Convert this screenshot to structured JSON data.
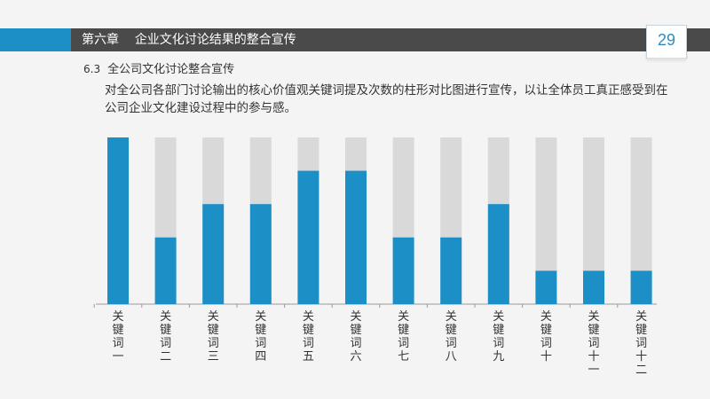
{
  "header": {
    "chapter": "第六章",
    "title": "企业文化讨论结果的整合宣传",
    "page_number": "29"
  },
  "section": {
    "number": "6.3",
    "title": "全公司文化讨论整合宣传"
  },
  "description": "对全公司各部门讨论输出的核心价值观关键词提及次数的柱形对比图进行宣传，以让全体员工真正感受到在公司企业文化建设过程中的参与感。",
  "colors": {
    "accent": "#1c8fc6",
    "bar_background": "#d9d9d9",
    "header_band": "#4a4a4a"
  },
  "chart_data": {
    "type": "bar",
    "stacked_background": true,
    "categories": [
      "关键词一",
      "关键词二",
      "关键词三",
      "关键词四",
      "关键词五",
      "关键词六",
      "关键词七",
      "关键词八",
      "关键词九",
      "关键词十",
      "关键词十一",
      "关键词十二"
    ],
    "values": [
      100,
      40,
      60,
      60,
      80,
      80,
      40,
      40,
      60,
      20,
      20,
      20
    ],
    "ylim": [
      0,
      100
    ],
    "title": "",
    "xlabel": "",
    "ylabel": "",
    "grid": false,
    "legend": "none"
  }
}
